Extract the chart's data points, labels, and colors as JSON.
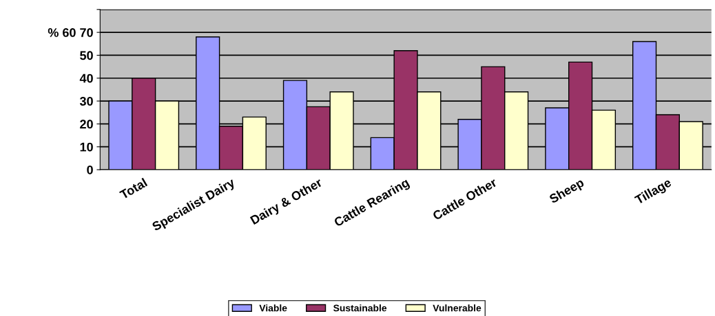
{
  "chart_data": {
    "type": "bar",
    "categories": [
      "Total",
      "Specialist Dairy",
      "Dairy & Other",
      "Cattle Rearing",
      "Cattle Other",
      "Sheep",
      "Tillage"
    ],
    "series": [
      {
        "name": "Viable",
        "color": "#9999ff",
        "values": [
          30,
          58,
          39,
          14,
          22,
          27,
          56
        ]
      },
      {
        "name": "Sustainable",
        "color": "#993366",
        "values": [
          40,
          19,
          27.5,
          52,
          45,
          47,
          24
        ]
      },
      {
        "name": "Vulnerable",
        "color": "#ffffcc",
        "values": [
          30,
          23,
          34,
          34,
          34,
          26,
          21
        ]
      }
    ],
    "ylim": [
      0,
      70
    ],
    "yticks": [
      0,
      10,
      20,
      30,
      40,
      50,
      {
        "value": 60,
        "label": "% 60 70"
      },
      {
        "value": 70,
        "label": null
      }
    ],
    "grid": "y",
    "legend": "bottom"
  }
}
